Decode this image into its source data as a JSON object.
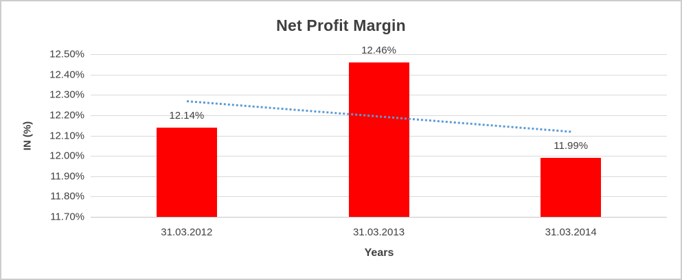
{
  "window": {
    "background": "#ffffff",
    "border_color": "#cdcdcd"
  },
  "chart_data": {
    "type": "bar",
    "title": "Net Profit Margin",
    "xlabel": "Years",
    "ylabel": "IN (%)",
    "categories": [
      "31.03.2012",
      "31.03.2013",
      "31.03.2014"
    ],
    "values": [
      12.14,
      12.46,
      11.99
    ],
    "data_labels": [
      "12.14%",
      "12.46%",
      "11.99%"
    ],
    "ylim": [
      11.7,
      12.5
    ],
    "ytick_step": 0.1,
    "ytick_labels": [
      "11.70%",
      "11.80%",
      "11.90%",
      "12.00%",
      "12.10%",
      "12.20%",
      "12.30%",
      "12.40%",
      "12.50%"
    ],
    "grid": true,
    "legend": "none",
    "bar_color": "#ff0000",
    "label_color": "#404040",
    "gridline_color": "#d9d9d9",
    "trendline": {
      "type": "linear",
      "style": "dotted",
      "color": "#5b9bd5",
      "start_category_index": 0,
      "end_category_index": 2,
      "start_value": 12.27,
      "end_value": 12.12
    }
  }
}
